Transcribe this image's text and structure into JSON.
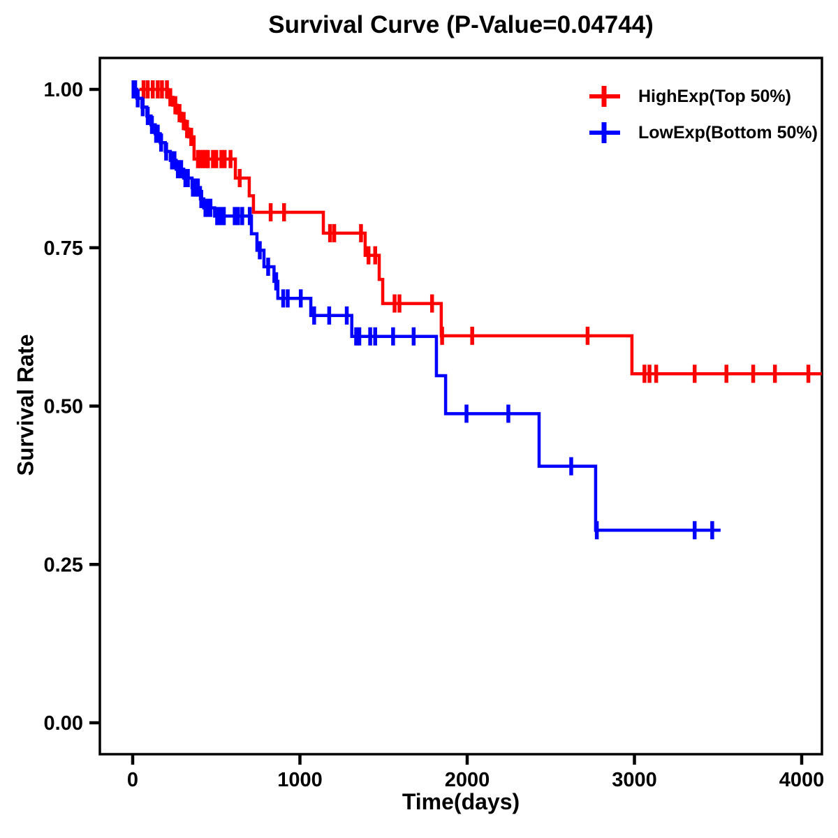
{
  "chart_data": {
    "type": "line",
    "subtype": "kaplan-meier-step-curves",
    "title": "Survival Curve (P-Value=0.04744)",
    "p_value": "0.04744",
    "xlabel": "Time(days)",
    "ylabel": "Survival Rate",
    "xlim": [
      0,
      4150
    ],
    "ylim": [
      0.0,
      1.0
    ],
    "grid": false,
    "legend_position": "top-right",
    "x_ticks": [
      0,
      1000,
      2000,
      3000,
      4000
    ],
    "x_tick_labels": [
      "0",
      "1000",
      "2000",
      "3000",
      "4000"
    ],
    "y_ticks": [
      1.0,
      0.75,
      0.5,
      0.25,
      0.0
    ],
    "y_tick_labels": [
      "1.00",
      "0.75",
      "0.50",
      "0.25",
      "0.00"
    ],
    "axis_color": "#000000",
    "background_color": "#ffffff",
    "series": [
      {
        "name": "HighExp(Top 50%)",
        "color": "#ff0000",
        "marker": "censor-plus",
        "start_time": 40,
        "end_time": 4120,
        "events": [
          [
            210,
            0.9875
          ],
          [
            240,
            0.975
          ],
          [
            265,
            0.9625
          ],
          [
            290,
            0.95
          ],
          [
            315,
            0.9375
          ],
          [
            335,
            0.925
          ],
          [
            367,
            0.89
          ],
          [
            614,
            0.86
          ],
          [
            697,
            0.832
          ],
          [
            722,
            0.806
          ],
          [
            1140,
            0.773
          ],
          [
            1390,
            0.738
          ],
          [
            1474,
            0.7
          ],
          [
            1495,
            0.662
          ],
          [
            1845,
            0.611
          ],
          [
            2985,
            0.551
          ]
        ],
        "censors": [
          [
            65,
            1.0
          ],
          [
            90,
            1.0
          ],
          [
            120,
            1.0
          ],
          [
            150,
            1.0
          ],
          [
            175,
            1.0
          ],
          [
            205,
            1.0
          ],
          [
            225,
            0.9875
          ],
          [
            255,
            0.975
          ],
          [
            280,
            0.9625
          ],
          [
            305,
            0.95
          ],
          [
            325,
            0.9375
          ],
          [
            350,
            0.925
          ],
          [
            390,
            0.89
          ],
          [
            405,
            0.89
          ],
          [
            420,
            0.89
          ],
          [
            435,
            0.89
          ],
          [
            450,
            0.89
          ],
          [
            480,
            0.89
          ],
          [
            500,
            0.89
          ],
          [
            530,
            0.89
          ],
          [
            550,
            0.89
          ],
          [
            585,
            0.89
          ],
          [
            640,
            0.86
          ],
          [
            825,
            0.806
          ],
          [
            905,
            0.806
          ],
          [
            1180,
            0.773
          ],
          [
            1205,
            0.773
          ],
          [
            1365,
            0.773
          ],
          [
            1410,
            0.738
          ],
          [
            1450,
            0.738
          ],
          [
            1566,
            0.662
          ],
          [
            1595,
            0.662
          ],
          [
            1790,
            0.662
          ],
          [
            1850,
            0.611
          ],
          [
            2030,
            0.611
          ],
          [
            2720,
            0.611
          ],
          [
            3060,
            0.551
          ],
          [
            3090,
            0.551
          ],
          [
            3130,
            0.551
          ],
          [
            3360,
            0.551
          ],
          [
            3550,
            0.551
          ],
          [
            3710,
            0.551
          ],
          [
            3840,
            0.551
          ],
          [
            4040,
            0.551
          ]
        ]
      },
      {
        "name": "LowExp(Bottom 50%)",
        "color": "#0000ff",
        "marker": "censor-plus",
        "start_time": 0,
        "end_time": 3515,
        "events": [
          [
            25,
            0.986
          ],
          [
            55,
            0.972
          ],
          [
            85,
            0.958
          ],
          [
            110,
            0.944
          ],
          [
            135,
            0.93
          ],
          [
            165,
            0.916
          ],
          [
            195,
            0.902
          ],
          [
            225,
            0.888
          ],
          [
            260,
            0.874
          ],
          [
            305,
            0.86
          ],
          [
            355,
            0.845
          ],
          [
            405,
            0.827
          ],
          [
            425,
            0.813
          ],
          [
            490,
            0.8
          ],
          [
            710,
            0.772
          ],
          [
            743,
            0.746
          ],
          [
            785,
            0.72
          ],
          [
            845,
            0.697
          ],
          [
            868,
            0.67
          ],
          [
            1065,
            0.643
          ],
          [
            1310,
            0.61
          ],
          [
            1816,
            0.548
          ],
          [
            1871,
            0.488
          ],
          [
            2430,
            0.405
          ],
          [
            2768,
            0.304
          ]
        ],
        "censors": [
          [
            5,
            1.0
          ],
          [
            15,
            1.0
          ],
          [
            30,
            0.986
          ],
          [
            60,
            0.972
          ],
          [
            90,
            0.958
          ],
          [
            115,
            0.944
          ],
          [
            140,
            0.93
          ],
          [
            150,
            0.93
          ],
          [
            170,
            0.916
          ],
          [
            200,
            0.902
          ],
          [
            235,
            0.888
          ],
          [
            250,
            0.888
          ],
          [
            270,
            0.874
          ],
          [
            290,
            0.874
          ],
          [
            315,
            0.86
          ],
          [
            330,
            0.86
          ],
          [
            360,
            0.845
          ],
          [
            375,
            0.845
          ],
          [
            390,
            0.845
          ],
          [
            410,
            0.827
          ],
          [
            435,
            0.813
          ],
          [
            450,
            0.813
          ],
          [
            465,
            0.813
          ],
          [
            505,
            0.8
          ],
          [
            525,
            0.8
          ],
          [
            545,
            0.8
          ],
          [
            610,
            0.8
          ],
          [
            630,
            0.8
          ],
          [
            655,
            0.8
          ],
          [
            700,
            0.8
          ],
          [
            760,
            0.746
          ],
          [
            810,
            0.72
          ],
          [
            858,
            0.697
          ],
          [
            900,
            0.67
          ],
          [
            927,
            0.67
          ],
          [
            1005,
            0.67
          ],
          [
            1085,
            0.643
          ],
          [
            1175,
            0.643
          ],
          [
            1280,
            0.643
          ],
          [
            1336,
            0.61
          ],
          [
            1355,
            0.61
          ],
          [
            1420,
            0.61
          ],
          [
            1450,
            0.61
          ],
          [
            1557,
            0.61
          ],
          [
            1680,
            0.61
          ],
          [
            1996,
            0.488
          ],
          [
            2246,
            0.488
          ],
          [
            2622,
            0.405
          ],
          [
            2775,
            0.304
          ],
          [
            3360,
            0.304
          ],
          [
            3465,
            0.304
          ]
        ]
      }
    ]
  },
  "legend": {
    "items": [
      {
        "label": "HighExp(Top 50%)",
        "color": "#ff0000",
        "marker": "censor-plus"
      },
      {
        "label": "LowExp(Bottom 50%)",
        "color": "#0000ff",
        "marker": "censor-plus"
      }
    ]
  }
}
